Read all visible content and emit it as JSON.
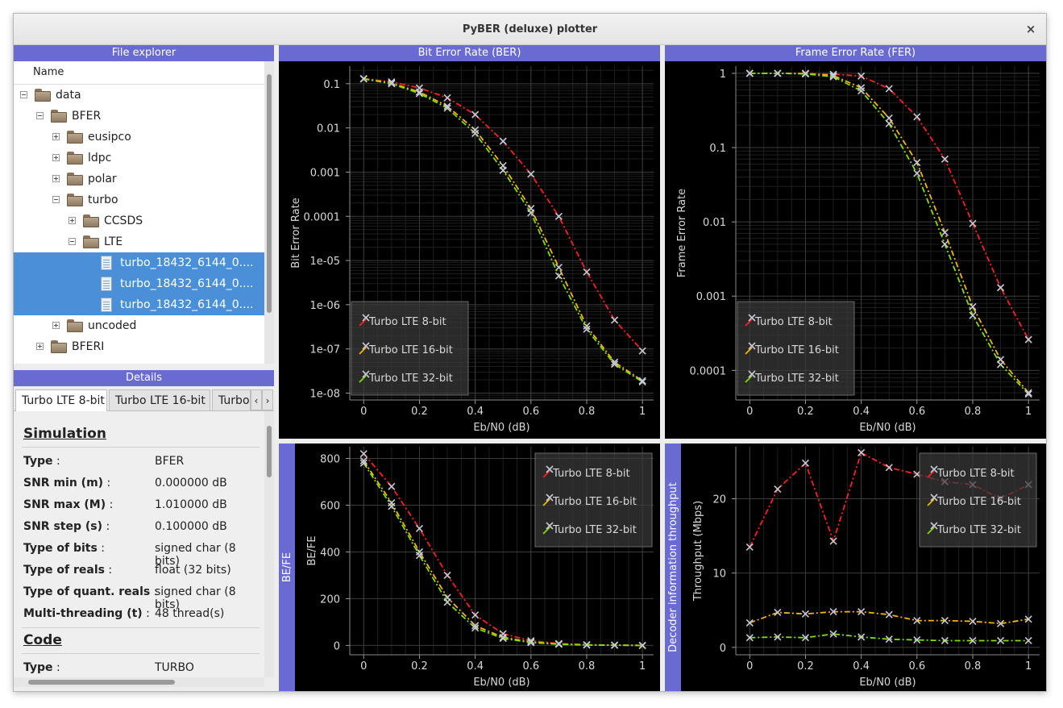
{
  "window": {
    "title": "PyBER (deluxe) plotter",
    "close_glyph": "×"
  },
  "explorer": {
    "header": "File explorer",
    "column": "Name",
    "items": [
      {
        "label": "data",
        "depth": 0,
        "type": "folder",
        "expander": "minus"
      },
      {
        "label": "BFER",
        "depth": 1,
        "type": "folder",
        "expander": "minus"
      },
      {
        "label": "eusipco",
        "depth": 2,
        "type": "folder",
        "expander": "plus"
      },
      {
        "label": "ldpc",
        "depth": 2,
        "type": "folder",
        "expander": "plus"
      },
      {
        "label": "polar",
        "depth": 2,
        "type": "folder",
        "expander": "plus"
      },
      {
        "label": "turbo",
        "depth": 2,
        "type": "folder",
        "expander": "minus"
      },
      {
        "label": "CCSDS",
        "depth": 3,
        "type": "folder",
        "expander": "plus"
      },
      {
        "label": "LTE",
        "depth": 3,
        "type": "folder",
        "expander": "minus"
      },
      {
        "label": "turbo_18432_6144_0....",
        "depth": 4,
        "type": "file",
        "selected": true
      },
      {
        "label": "turbo_18432_6144_0....",
        "depth": 4,
        "type": "file",
        "selected": true
      },
      {
        "label": "turbo_18432_6144_0....",
        "depth": 4,
        "type": "file",
        "selected": true
      },
      {
        "label": "uncoded",
        "depth": 2,
        "type": "folder",
        "expander": "plus"
      },
      {
        "label": "BFERI",
        "depth": 1,
        "type": "folder",
        "expander": "plus"
      }
    ]
  },
  "details": {
    "header": "Details",
    "tabs": [
      "Turbo LTE 8-bit",
      "Turbo LTE 16-bit",
      "Turbo"
    ],
    "tab_prev": "‹",
    "tab_next": "›",
    "sections": [
      {
        "title": "Simulation",
        "rows": [
          {
            "key": "Type",
            "value": "BFER"
          },
          {
            "key": "SNR min (m)",
            "value": "0.000000 dB"
          },
          {
            "key": "SNR max (M)",
            "value": "1.010000 dB"
          },
          {
            "key": "SNR step (s)",
            "value": "0.100000 dB"
          },
          {
            "key": "Type of bits",
            "value": "signed char (8 bits)"
          },
          {
            "key": "Type of reals",
            "value": "float (32 bits)"
          },
          {
            "key": "Type of quant. reals",
            "value": "signed char (8 bits)"
          },
          {
            "key": "Multi-threading (t)",
            "value": "48 thread(s)"
          }
        ]
      },
      {
        "title": "Code",
        "rows": [
          {
            "key": "Type",
            "value": "TURBO"
          }
        ]
      }
    ]
  },
  "colors": {
    "accent": "#6a6bd2",
    "selection": "#4a90d9",
    "series": [
      "#ff2020",
      "#f7b500",
      "#7ce000"
    ],
    "marker": "#c9c9d6"
  },
  "chart_data": [
    {
      "type": "line",
      "title": "Bit Error Rate (BER)",
      "xlabel": "Eb/N0 (dB)",
      "ylabel": "Bit Error Rate",
      "yscale": "log",
      "xlim": [
        -0.05,
        1.04
      ],
      "ylim": [
        7e-09,
        0.25
      ],
      "xticks": [
        "0",
        "0.2",
        "0.4",
        "0.6",
        "0.8",
        "1"
      ],
      "yticks": [
        "0.1",
        "0.01",
        "0.001",
        "0.0001",
        "1e-05",
        "1e-06",
        "1e-07",
        "1e-08"
      ],
      "legend_position": "bottom-left",
      "series": [
        {
          "name": "Turbo LTE 8-bit",
          "x": [
            0,
            0.1,
            0.2,
            0.3,
            0.4,
            0.5,
            0.6,
            0.7,
            0.8,
            0.9,
            1.0
          ],
          "y": [
            0.13,
            0.11,
            0.08,
            0.048,
            0.02,
            0.005,
            0.0009,
            0.0001,
            5.5e-06,
            4.5e-07,
            9e-08
          ]
        },
        {
          "name": "Turbo LTE 16-bit",
          "x": [
            0,
            0.1,
            0.2,
            0.3,
            0.4,
            0.5,
            0.6,
            0.7,
            0.8,
            0.9,
            1.0
          ],
          "y": [
            0.13,
            0.103,
            0.065,
            0.031,
            0.009,
            0.0014,
            0.00015,
            7e-06,
            3.3e-07,
            5e-08,
            1.9e-08
          ]
        },
        {
          "name": "Turbo LTE 32-bit",
          "x": [
            0,
            0.1,
            0.2,
            0.3,
            0.4,
            0.5,
            0.6,
            0.7,
            0.8,
            0.9,
            1.0
          ],
          "y": [
            0.128,
            0.1,
            0.06,
            0.028,
            0.0075,
            0.0011,
            0.00012,
            4.5e-06,
            2.8e-07,
            4.5e-08,
            1.8e-08
          ]
        }
      ]
    },
    {
      "type": "line",
      "title": "Frame Error Rate (FER)",
      "xlabel": "Eb/N0 (dB)",
      "ylabel": "Frame Error Rate",
      "yscale": "log",
      "xlim": [
        -0.05,
        1.04
      ],
      "ylim": [
        4e-05,
        1.25
      ],
      "xticks": [
        "0",
        "0.2",
        "0.4",
        "0.6",
        "0.8",
        "1"
      ],
      "yticks": [
        "1",
        "0.1",
        "0.01",
        "0.001",
        "0.0001"
      ],
      "legend_position": "bottom-left",
      "series": [
        {
          "name": "Turbo LTE 8-bit",
          "x": [
            0,
            0.1,
            0.2,
            0.3,
            0.4,
            0.5,
            0.6,
            0.7,
            0.8,
            0.9,
            1.0
          ],
          "y": [
            1,
            1,
            1,
            0.97,
            0.92,
            0.62,
            0.26,
            0.07,
            0.0095,
            0.0013,
            0.00026
          ]
        },
        {
          "name": "Turbo LTE 16-bit",
          "x": [
            0,
            0.1,
            0.2,
            0.3,
            0.4,
            0.5,
            0.6,
            0.7,
            0.8,
            0.9,
            1.0
          ],
          "y": [
            1,
            1,
            0.99,
            0.93,
            0.64,
            0.25,
            0.063,
            0.0072,
            0.00072,
            0.00014,
            5e-05
          ]
        },
        {
          "name": "Turbo LTE 32-bit",
          "x": [
            0,
            0.1,
            0.2,
            0.3,
            0.4,
            0.5,
            0.6,
            0.7,
            0.8,
            0.9,
            1.0
          ],
          "y": [
            1,
            1,
            0.98,
            0.9,
            0.58,
            0.21,
            0.045,
            0.005,
            0.00055,
            0.00012,
            4.8e-05
          ]
        }
      ]
    },
    {
      "type": "line",
      "title": "BE/FE",
      "xlabel": "Eb/N0 (dB)",
      "ylabel": "BE/FE",
      "yscale": "linear",
      "xlim": [
        -0.05,
        1.04
      ],
      "ylim": [
        -40,
        850
      ],
      "xticks": [
        "0",
        "0.2",
        "0.4",
        "0.6",
        "0.8",
        "1"
      ],
      "yticks": [
        "800",
        "600",
        "400",
        "200",
        "0"
      ],
      "legend_position": "top-right",
      "series": [
        {
          "name": "Turbo LTE 8-bit",
          "x": [
            0,
            0.1,
            0.2,
            0.3,
            0.4,
            0.5,
            0.6,
            0.7,
            0.8,
            0.9,
            1.0
          ],
          "y": [
            820,
            680,
            500,
            300,
            130,
            50,
            20,
            8,
            3,
            1,
            0
          ]
        },
        {
          "name": "Turbo LTE 16-bit",
          "x": [
            0,
            0.1,
            0.2,
            0.3,
            0.4,
            0.5,
            0.6,
            0.7,
            0.8,
            0.9,
            1.0
          ],
          "y": [
            790,
            610,
            400,
            205,
            85,
            35,
            15,
            6,
            2,
            1,
            0
          ]
        },
        {
          "name": "Turbo LTE 32-bit",
          "x": [
            0,
            0.1,
            0.2,
            0.3,
            0.4,
            0.5,
            0.6,
            0.7,
            0.8,
            0.9,
            1.0
          ],
          "y": [
            780,
            595,
            385,
            185,
            75,
            30,
            12,
            5,
            2,
            1,
            0
          ]
        }
      ]
    },
    {
      "type": "line",
      "title": "Decoder information throughput",
      "xlabel": "Eb/N0 (dB)",
      "ylabel": "Throughput (Mbps)",
      "yscale": "linear",
      "xlim": [
        -0.05,
        1.04
      ],
      "ylim": [
        -1,
        27
      ],
      "xticks": [
        "0",
        "0.2",
        "0.4",
        "0.6",
        "0.8",
        "1"
      ],
      "yticks": [
        "20",
        "10",
        "0"
      ],
      "legend_position": "top-right",
      "series": [
        {
          "name": "Turbo LTE 8-bit",
          "x": [
            0,
            0.1,
            0.2,
            0.3,
            0.4,
            0.5,
            0.6,
            0.7,
            0.8,
            0.9,
            1.0
          ],
          "y": [
            13.5,
            21.3,
            24.8,
            14.3,
            26.2,
            24.2,
            23.3,
            22.3,
            21.9,
            20.0,
            21.9
          ]
        },
        {
          "name": "Turbo LTE 16-bit",
          "x": [
            0,
            0.1,
            0.2,
            0.3,
            0.4,
            0.5,
            0.6,
            0.7,
            0.8,
            0.9,
            1.0
          ],
          "y": [
            3.3,
            4.7,
            4.5,
            4.8,
            4.8,
            4.4,
            3.6,
            3.6,
            3.5,
            3.2,
            3.8
          ]
        },
        {
          "name": "Turbo LTE 32-bit",
          "x": [
            0,
            0.1,
            0.2,
            0.3,
            0.4,
            0.5,
            0.6,
            0.7,
            0.8,
            0.9,
            1.0
          ],
          "y": [
            1.3,
            1.4,
            1.3,
            1.8,
            1.4,
            1.1,
            1.0,
            0.9,
            0.9,
            0.9,
            0.9
          ]
        }
      ]
    }
  ]
}
